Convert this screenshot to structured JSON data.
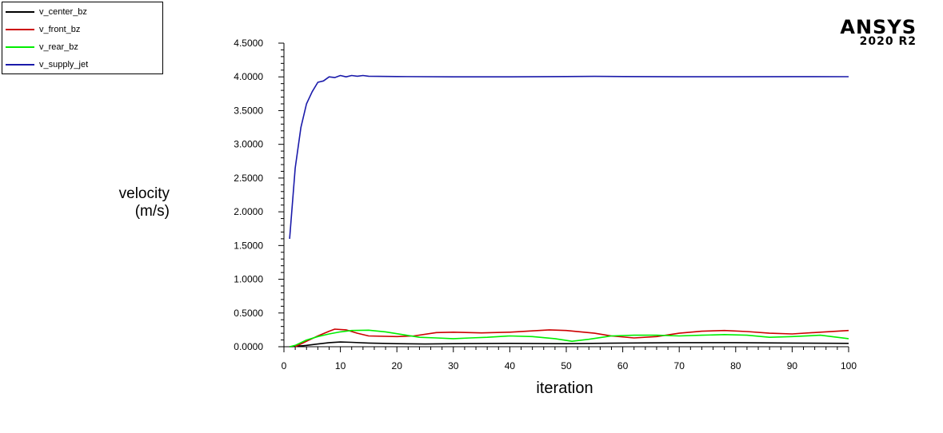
{
  "chart_data": {
    "type": "line",
    "title": "",
    "xlabel": "iteration",
    "ylabel_lines": [
      "velocity",
      "(m/s)"
    ],
    "xlim": [
      0,
      100
    ],
    "ylim": [
      0,
      4.5
    ],
    "x_ticks": [
      "0",
      "10",
      "20",
      "30",
      "40",
      "50",
      "60",
      "70",
      "80",
      "90",
      "100"
    ],
    "y_ticks": [
      "0.0000",
      "0.5000",
      "1.0000",
      "1.5000",
      "2.0000",
      "2.5000",
      "3.0000",
      "3.5000",
      "4.0000",
      "4.5000"
    ],
    "grid": false,
    "legend_position": "top-left",
    "series": [
      {
        "name": "v_center_bz",
        "color": "#000000",
        "x": [
          1,
          2,
          4,
          6,
          8,
          10,
          12,
          15,
          20,
          25,
          30,
          40,
          50,
          60,
          70,
          80,
          90,
          100
        ],
        "y": [
          0.0,
          0.005,
          0.02,
          0.04,
          0.06,
          0.07,
          0.065,
          0.055,
          0.045,
          0.04,
          0.045,
          0.05,
          0.045,
          0.055,
          0.06,
          0.06,
          0.055,
          0.05
        ]
      },
      {
        "name": "v_front_bz",
        "color": "#cc0000",
        "x": [
          2,
          4,
          6,
          8,
          9,
          11,
          13,
          15,
          20,
          23,
          27,
          30,
          35,
          40,
          43,
          47,
          50,
          55,
          58,
          62,
          66,
          70,
          74,
          78,
          82,
          86,
          90,
          95,
          100
        ],
        "y": [
          0.0,
          0.08,
          0.16,
          0.23,
          0.26,
          0.25,
          0.2,
          0.16,
          0.15,
          0.16,
          0.21,
          0.215,
          0.205,
          0.215,
          0.23,
          0.25,
          0.24,
          0.2,
          0.16,
          0.13,
          0.15,
          0.2,
          0.23,
          0.24,
          0.225,
          0.2,
          0.19,
          0.215,
          0.24
        ]
      },
      {
        "name": "v_rear_bz",
        "color": "#00ee00",
        "x": [
          1,
          2,
          4,
          6,
          8,
          10,
          12,
          15,
          18,
          21,
          24,
          27,
          30,
          33,
          36,
          40,
          44,
          48,
          51,
          54,
          58,
          62,
          66,
          70,
          74,
          78,
          82,
          86,
          90,
          95,
          100
        ],
        "y": [
          0.0,
          0.02,
          0.1,
          0.15,
          0.19,
          0.22,
          0.24,
          0.245,
          0.22,
          0.18,
          0.14,
          0.13,
          0.12,
          0.13,
          0.14,
          0.16,
          0.15,
          0.12,
          0.08,
          0.11,
          0.16,
          0.17,
          0.17,
          0.16,
          0.17,
          0.18,
          0.17,
          0.14,
          0.15,
          0.17,
          0.12
        ]
      },
      {
        "name": "v_supply_jet",
        "color": "#1a1aaa",
        "x": [
          1,
          2,
          3,
          4,
          5,
          6,
          7,
          8,
          9,
          10,
          11,
          12,
          13,
          14,
          15,
          20,
          30,
          40,
          50,
          55,
          60,
          70,
          80,
          90,
          100
        ],
        "y": [
          1.6,
          2.65,
          3.25,
          3.6,
          3.78,
          3.92,
          3.94,
          4.0,
          3.99,
          4.02,
          4.0,
          4.02,
          4.01,
          4.02,
          4.01,
          4.005,
          4.0,
          4.0,
          4.005,
          4.007,
          4.005,
          4.002,
          4.002,
          4.004,
          4.003
        ]
      }
    ]
  },
  "logo": {
    "brand": "ANSYS",
    "version": "2020 R2"
  }
}
